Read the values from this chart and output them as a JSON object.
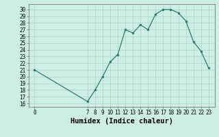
{
  "x": [
    0,
    7,
    8,
    9,
    10,
    11,
    12,
    13,
    14,
    15,
    16,
    17,
    18,
    19,
    20,
    21,
    22,
    23
  ],
  "y": [
    21,
    16.3,
    18,
    20,
    22.2,
    23.3,
    27,
    26.5,
    27.7,
    27,
    29.3,
    30,
    30,
    29.5,
    28.3,
    25.2,
    23.8,
    21.3
  ],
  "line_color": "#2d7a6a",
  "marker_color": "#2d7a6a",
  "bg_color": "#cceee4",
  "grid_color": "#aad4c8",
  "xlabel": "Humidex (Indice chaleur)",
  "ylim": [
    15.5,
    30.8
  ],
  "xlim": [
    -0.8,
    23.8
  ],
  "yticks": [
    16,
    17,
    18,
    19,
    20,
    21,
    22,
    23,
    24,
    25,
    26,
    27,
    28,
    29,
    30
  ],
  "xticks": [
    0,
    7,
    8,
    9,
    10,
    11,
    12,
    13,
    14,
    15,
    16,
    17,
    18,
    19,
    20,
    21,
    22,
    23
  ],
  "tick_label_fontsize": 5.5,
  "xlabel_fontsize": 7.5
}
